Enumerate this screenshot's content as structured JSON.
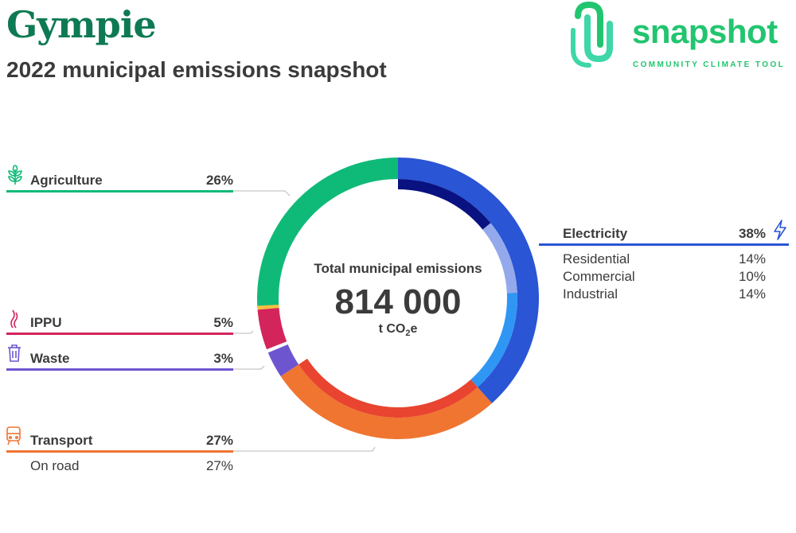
{
  "header": {
    "title": "Gympie",
    "subtitle": "2022 municipal emissions snapshot"
  },
  "logo": {
    "word": "snapshot",
    "tagline": "COMMUNITY CLIMATE TOOL"
  },
  "center": {
    "label": "Total municipal emissions",
    "value": "814 000",
    "unit_prefix": "t CO",
    "unit_sub": "2",
    "unit_suffix": "e"
  },
  "colors": {
    "agriculture": "#0fba78",
    "ippu": "#d4245c",
    "waste": "#6e55d0",
    "transport": "#f07530",
    "transport_inner": "#e8442f",
    "electricity": "#2a55d4",
    "residential_inner": "#0a1180",
    "commercial_inner": "#93a9ec",
    "industrial_inner": "#2f96f4",
    "other": "#f5c040"
  },
  "chart_data": {
    "type": "donut",
    "total": "814 000",
    "unit": "t CO2e",
    "sectors": [
      {
        "name": "Electricity",
        "value": 38,
        "label": "38%",
        "subsectors": [
          {
            "name": "Residential",
            "value": 14,
            "label": "14%"
          },
          {
            "name": "Commercial",
            "value": 10,
            "label": "10%"
          },
          {
            "name": "Industrial",
            "value": 14,
            "label": "14%"
          }
        ]
      },
      {
        "name": "Transport",
        "value": 27,
        "label": "27%",
        "subsectors": [
          {
            "name": "On road",
            "value": 27,
            "label": "27%"
          }
        ]
      },
      {
        "name": "Waste",
        "value": 3,
        "label": "3%"
      },
      {
        "name": "IPPU",
        "value": 5,
        "label": "5%"
      },
      {
        "name": "Agriculture",
        "value": 26,
        "label": "26%"
      }
    ]
  }
}
